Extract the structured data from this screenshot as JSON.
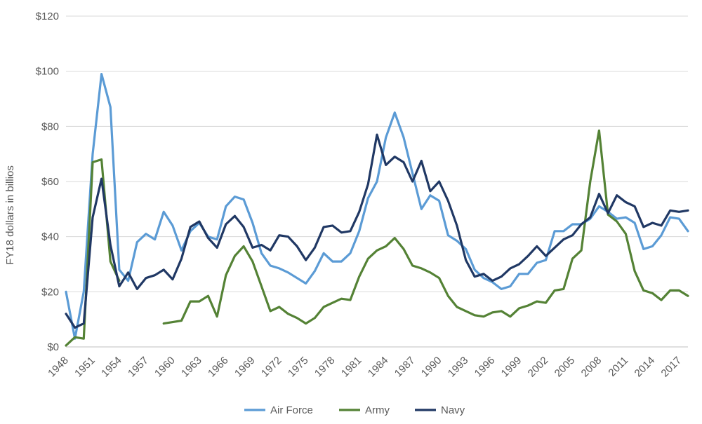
{
  "chart_data": {
    "type": "line",
    "title": "",
    "xlabel": "",
    "ylabel": "FY18 dollars in billios",
    "ylim": [
      0,
      120
    ],
    "y_ticks": [
      0,
      20,
      40,
      60,
      80,
      100,
      120
    ],
    "y_tick_labels": [
      "$0",
      "$20",
      "$40",
      "$60",
      "$80",
      "$100",
      "$120"
    ],
    "x_tick_labels": [
      "1948",
      "1951",
      "1954",
      "1957",
      "1960",
      "1963",
      "1966",
      "1969",
      "1972",
      "1975",
      "1978",
      "1981",
      "1984",
      "1987",
      "1990",
      "1993",
      "1996",
      "1999",
      "2002",
      "2005",
      "2008",
      "2011",
      "2014",
      "2017"
    ],
    "x": [
      1948,
      1949,
      1950,
      1951,
      1952,
      1953,
      1954,
      1955,
      1956,
      1957,
      1958,
      1959,
      1960,
      1961,
      1962,
      1963,
      1964,
      1965,
      1966,
      1967,
      1968,
      1969,
      1970,
      1971,
      1972,
      1973,
      1974,
      1975,
      1976,
      1977,
      1978,
      1979,
      1980,
      1981,
      1982,
      1983,
      1984,
      1985,
      1986,
      1987,
      1988,
      1989,
      1990,
      1991,
      1992,
      1993,
      1994,
      1995,
      1996,
      1997,
      1998,
      1999,
      2000,
      2001,
      2002,
      2003,
      2004,
      2005,
      2006,
      2007,
      2008,
      2009,
      2010,
      2011,
      2012,
      2013,
      2014,
      2015,
      2016,
      2017,
      2018
    ],
    "grid": true,
    "legend_position": "bottom",
    "series": [
      {
        "name": "Air Force",
        "color": "#5b9bd5",
        "values": [
          20,
          3,
          20,
          70,
          99,
          87,
          28,
          24,
          38,
          41,
          39,
          49,
          44,
          35,
          42,
          45,
          40,
          39,
          51,
          54.5,
          53.5,
          45,
          34,
          29.5,
          28.5,
          27,
          25,
          23,
          27.5,
          34,
          31,
          31,
          34,
          42,
          54,
          60,
          76,
          85,
          76,
          63,
          50,
          55,
          53,
          40.5,
          38.5,
          35.5,
          28,
          25,
          23.5,
          21,
          22,
          26.5,
          26.5,
          30.5,
          31.5,
          42,
          42,
          44.5,
          44.5,
          46.5,
          51,
          49,
          46.5,
          47,
          45,
          35.5,
          36.5,
          40.5,
          47,
          46.5,
          42
        ]
      },
      {
        "name": "Army",
        "color": "#548235",
        "values": [
          0.5,
          3.5,
          3,
          67,
          68,
          31,
          24,
          null,
          null,
          null,
          null,
          8.5,
          9,
          9.5,
          16.5,
          16.5,
          18.5,
          11,
          26,
          33,
          36.5,
          31,
          22,
          13,
          14.5,
          12,
          10.5,
          8.5,
          10.5,
          14.5,
          16,
          17.5,
          17,
          25.5,
          32,
          35,
          36.5,
          39.5,
          35.5,
          29.5,
          28.5,
          27,
          25,
          18.5,
          14.5,
          13,
          11.5,
          11,
          12.5,
          13,
          11,
          14,
          15,
          16.5,
          16,
          20.5,
          21,
          32,
          35,
          60,
          78.5,
          48,
          45.5,
          41,
          27.5,
          20.5,
          19.5,
          17,
          20.5,
          20.5,
          18.5
        ]
      },
      {
        "name": "Navy",
        "color": "#203864",
        "values": [
          12,
          7,
          8.5,
          47,
          61,
          37,
          22,
          27,
          21,
          25,
          26,
          28,
          24.5,
          32,
          43.5,
          45.5,
          39.5,
          36,
          44.5,
          47.5,
          43.5,
          36,
          37,
          35,
          40.5,
          40,
          36.5,
          31.5,
          36,
          43.5,
          44,
          41.5,
          42,
          49,
          59,
          77,
          66,
          69,
          67,
          60,
          67.5,
          56.5,
          60,
          53,
          44,
          31.5,
          25.5,
          26.5,
          24,
          25.5,
          28.5,
          30,
          33,
          36.5,
          33,
          36,
          39,
          40.5,
          44.5,
          47,
          55.5,
          48.5,
          55,
          52.5,
          51,
          43.5,
          45,
          44,
          49.5,
          49,
          49.5
        ]
      }
    ]
  }
}
